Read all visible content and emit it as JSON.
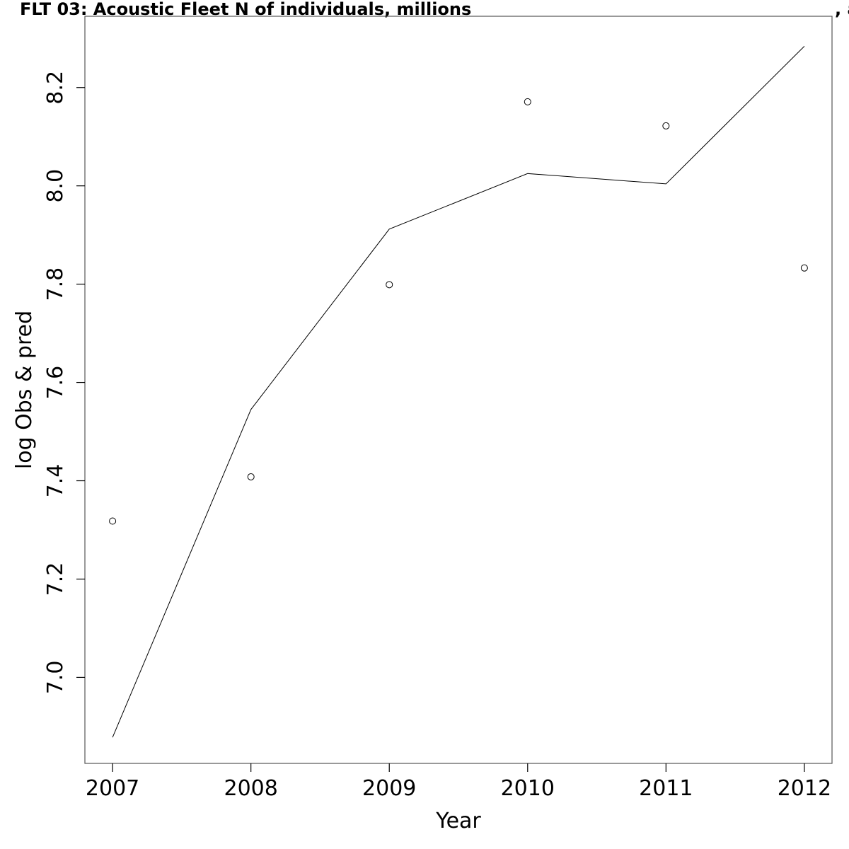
{
  "chart_data": {
    "type": "line",
    "title": "FLT 03: Acoustic Fleet   N of individuals, millions",
    "title_right": ", a",
    "xlabel": "Year",
    "ylabel": "log Obs & pred",
    "x": [
      2007,
      2008,
      2009,
      2010,
      2011,
      2012
    ],
    "x_ticks": [
      "2007",
      "2008",
      "2009",
      "2010",
      "2011",
      "2012"
    ],
    "y_ticks": [
      "7.0",
      "7.2",
      "7.4",
      "7.6",
      "7.8",
      "8.0",
      "8.2"
    ],
    "xlim": [
      2006.8,
      2012.2
    ],
    "ylim": [
      6.825,
      8.345
    ],
    "series": [
      {
        "kind": "points",
        "values": [
          7.318,
          7.408,
          7.799,
          8.171,
          8.122,
          7.833
        ]
      },
      {
        "kind": "line",
        "values": [
          6.878,
          7.545,
          7.912,
          8.025,
          8.004,
          8.284
        ]
      }
    ],
    "grid": false,
    "legend": "none",
    "colors": {
      "line": "#000000",
      "points": "#000000",
      "frame": "#555555"
    }
  }
}
